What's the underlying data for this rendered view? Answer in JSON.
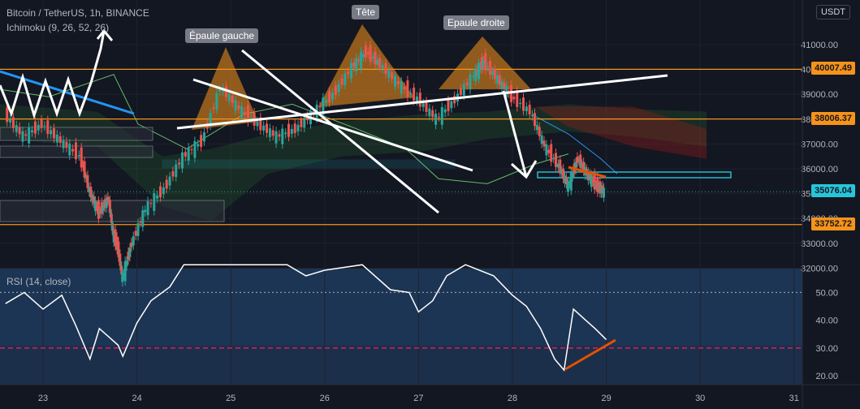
{
  "header": {
    "symbol": "Bitcoin / TetherUS, 1h, BINANCE",
    "indicator": "Ichimoku (9, 26, 52, 26)",
    "currency": "USDT"
  },
  "annotations": {
    "left_shoulder": "Épaule gauche",
    "head": "Tête",
    "right_shoulder": "Epaule droite"
  },
  "price_tags": [
    {
      "value": "40007.49",
      "color": "#f7931a",
      "text_color": "#131722"
    },
    {
      "value": "38006.37",
      "color": "#f7931a",
      "text_color": "#131722"
    },
    {
      "value": "35076.04",
      "color": "#26c6da",
      "text_color": "#131722"
    },
    {
      "value": "33752.72",
      "color": "#f7931a",
      "text_color": "#131722"
    }
  ],
  "rsi_label": "RSI (14, close)",
  "chart_data": [
    {
      "type": "candlestick",
      "title": "Bitcoin / TetherUS, 1h, BINANCE",
      "x_ticks": [
        "23",
        "24",
        "25",
        "26",
        "27",
        "28",
        "29",
        "30",
        "31"
      ],
      "y_ticks": [
        "32000.00",
        "33000.00",
        "34000.00",
        "35000.00",
        "36000.00",
        "37000.00",
        "38000.00",
        "39000.00",
        "40000.00",
        "41000.00"
      ],
      "ylim": [
        31000,
        41400
      ],
      "horizontal_levels": [
        40007.49,
        38006.37,
        33752.72
      ],
      "current_price": 35076.04,
      "price_path": [
        {
          "x": 22.6,
          "y": 38200
        },
        {
          "x": 22.8,
          "y": 37300
        },
        {
          "x": 23.0,
          "y": 37800
        },
        {
          "x": 23.2,
          "y": 37100
        },
        {
          "x": 23.4,
          "y": 36500
        },
        {
          "x": 23.5,
          "y": 35100
        },
        {
          "x": 23.6,
          "y": 34200
        },
        {
          "x": 23.7,
          "y": 34800
        },
        {
          "x": 23.75,
          "y": 33400
        },
        {
          "x": 23.8,
          "y": 32800
        },
        {
          "x": 23.85,
          "y": 31600
        },
        {
          "x": 23.95,
          "y": 33000
        },
        {
          "x": 24.1,
          "y": 34400
        },
        {
          "x": 24.3,
          "y": 35200
        },
        {
          "x": 24.5,
          "y": 36500
        },
        {
          "x": 24.7,
          "y": 37100
        },
        {
          "x": 24.9,
          "y": 39300
        },
        {
          "x": 25.1,
          "y": 38400
        },
        {
          "x": 25.3,
          "y": 37800
        },
        {
          "x": 25.5,
          "y": 37300
        },
        {
          "x": 25.7,
          "y": 37600
        },
        {
          "x": 25.9,
          "y": 38300
        },
        {
          "x": 26.1,
          "y": 39000
        },
        {
          "x": 26.3,
          "y": 40100
        },
        {
          "x": 26.45,
          "y": 40700
        },
        {
          "x": 26.6,
          "y": 40200
        },
        {
          "x": 26.8,
          "y": 39400
        },
        {
          "x": 27.0,
          "y": 38800
        },
        {
          "x": 27.2,
          "y": 38000
        },
        {
          "x": 27.4,
          "y": 38800
        },
        {
          "x": 27.6,
          "y": 39800
        },
        {
          "x": 27.7,
          "y": 40300
        },
        {
          "x": 27.85,
          "y": 39600
        },
        {
          "x": 28.0,
          "y": 38900
        },
        {
          "x": 28.2,
          "y": 38300
        },
        {
          "x": 28.35,
          "y": 36900
        },
        {
          "x": 28.5,
          "y": 36100
        },
        {
          "x": 28.6,
          "y": 35300
        },
        {
          "x": 28.7,
          "y": 36400
        },
        {
          "x": 28.8,
          "y": 35800
        },
        {
          "x": 28.9,
          "y": 35300
        },
        {
          "x": 28.98,
          "y": 35076
        }
      ]
    },
    {
      "type": "line",
      "title": "RSI (14, close)",
      "y_ticks": [
        "20.00",
        "30.00",
        "40.00",
        "50.00"
      ],
      "ylim": [
        16,
        60
      ],
      "bands": [
        30,
        50
      ],
      "values": [
        {
          "x": 22.6,
          "y": 46
        },
        {
          "x": 22.8,
          "y": 50
        },
        {
          "x": 23.0,
          "y": 44
        },
        {
          "x": 23.2,
          "y": 49
        },
        {
          "x": 23.35,
          "y": 38
        },
        {
          "x": 23.5,
          "y": 26
        },
        {
          "x": 23.6,
          "y": 37
        },
        {
          "x": 23.7,
          "y": 34
        },
        {
          "x": 23.8,
          "y": 31
        },
        {
          "x": 23.85,
          "y": 27
        },
        {
          "x": 24.0,
          "y": 39
        },
        {
          "x": 24.15,
          "y": 47
        },
        {
          "x": 24.35,
          "y": 52
        },
        {
          "x": 24.5,
          "y": 60
        },
        {
          "x": 25.6,
          "y": 60
        },
        {
          "x": 25.8,
          "y": 56
        },
        {
          "x": 26.0,
          "y": 58
        },
        {
          "x": 26.4,
          "y": 60
        },
        {
          "x": 26.7,
          "y": 51
        },
        {
          "x": 26.9,
          "y": 50
        },
        {
          "x": 27.0,
          "y": 43
        },
        {
          "x": 27.15,
          "y": 47
        },
        {
          "x": 27.3,
          "y": 56
        },
        {
          "x": 27.5,
          "y": 60
        },
        {
          "x": 27.8,
          "y": 56
        },
        {
          "x": 28.0,
          "y": 49
        },
        {
          "x": 28.15,
          "y": 45
        },
        {
          "x": 28.3,
          "y": 37
        },
        {
          "x": 28.45,
          "y": 26
        },
        {
          "x": 28.55,
          "y": 22
        },
        {
          "x": 28.65,
          "y": 44
        },
        {
          "x": 28.78,
          "y": 40
        },
        {
          "x": 28.88,
          "y": 37
        },
        {
          "x": 29.0,
          "y": 33
        }
      ]
    }
  ]
}
